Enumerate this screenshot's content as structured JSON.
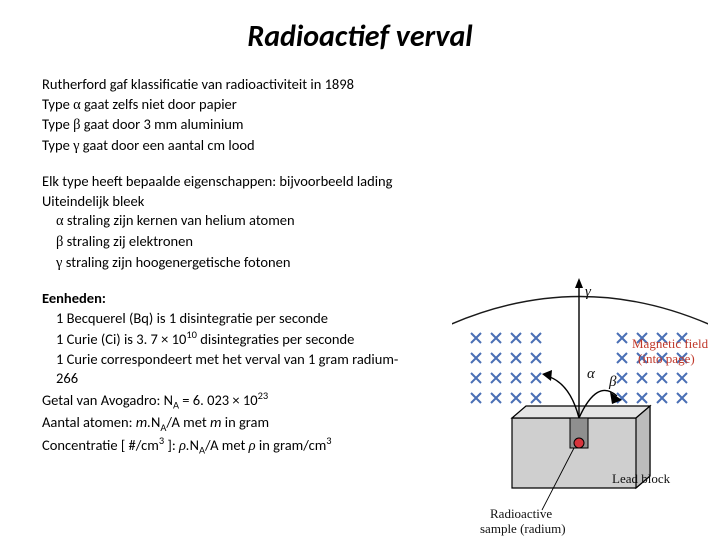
{
  "title": "Radioactief verval",
  "p1": {
    "l1": "Rutherford gaf klassificatie van radioactiviteit in 1898",
    "l2_a": "Type ",
    "l2_sym": "α",
    "l2_b": " gaat zelfs niet door papier",
    "l3_a": "Type ",
    "l3_sym": "β",
    "l3_b": " gaat door 3 mm aluminium",
    "l4_a": "Type ",
    "l4_sym": "γ",
    "l4_b": " gaat door een aantal cm lood"
  },
  "p2": {
    "l1": "Elk type heeft bepaalde eigenschappen: bijvoorbeeld lading",
    "l2": "Uiteindelijk bleek",
    "l3_sym": "α",
    "l3": " straling zijn kernen van helium atomen",
    "l4_sym": "β",
    "l4": " straling zij elektronen",
    "l5_sym": "γ",
    "l5": " straling zijn hoogenergetische fotonen"
  },
  "p3": {
    "head": "Eenheden:",
    "l1": "1 Becquerel (Bq) is 1 disintegratie per seconde",
    "l2a": "1 Curie (Ci) is 3. 7 × 10",
    "l2exp": "10",
    "l2b": " disintegraties per seconde",
    "l3": "1 Curie correspondeert met het verval van 1 gram radium-266",
    "l4a": "Getal van Avogadro: N",
    "l4sub": "A",
    "l4b": " = 6. 023 × 10",
    "l4exp": "23",
    "l5a": "Aantal atomen: ",
    "l5b": "m.",
    "l5c": "N",
    "l5sub": "A",
    "l5d": "/A met ",
    "l5e": "m",
    "l5f": " in gram",
    "l6a": "Concentratie [ #/cm",
    "l6exp1": "3",
    "l6b": " ]: ",
    "l6rho1": "ρ.",
    "l6c": "N",
    "l6sub": "A",
    "l6d": "/A met ",
    "l6rho2": "ρ",
    "l6e": " in gram/cm",
    "l6exp2": "3"
  },
  "figure": {
    "label_gamma": "γ",
    "label_alpha": "α",
    "label_beta": "β",
    "label_magfield1": "Magnetic field",
    "label_magfield2": "(into page)",
    "label_block": "Lead block",
    "label_sample1": "Radioactive",
    "label_sample2": "sample (radium)",
    "colors": {
      "cross": "#4a6fb5",
      "arc": "#1a1a1a",
      "block_fill": "#cfcfcf",
      "block_stroke": "#000000",
      "sample": "#d6343c",
      "text": "#111111",
      "field_text": "#c0392b"
    }
  }
}
